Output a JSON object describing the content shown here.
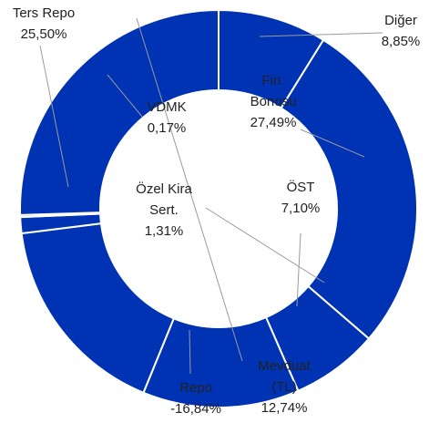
{
  "chart_data": {
    "type": "donut",
    "categories": [
      "Diğer",
      "Fin. Bonosu",
      "ÖST",
      "Mevduat (TL)",
      "Repo",
      "Özel Kira Sert.",
      "VDMK",
      "Ters Repo"
    ],
    "values": [
      8.85,
      27.49,
      7.1,
      12.74,
      -16.84,
      1.31,
      0.17,
      25.5
    ],
    "value_labels": [
      "8,85%",
      "27,49%",
      "7,10%",
      "12,74%",
      "-16,84%",
      "1,31%",
      "0,17%",
      "25,50%"
    ],
    "color": "#0033b4"
  }
}
